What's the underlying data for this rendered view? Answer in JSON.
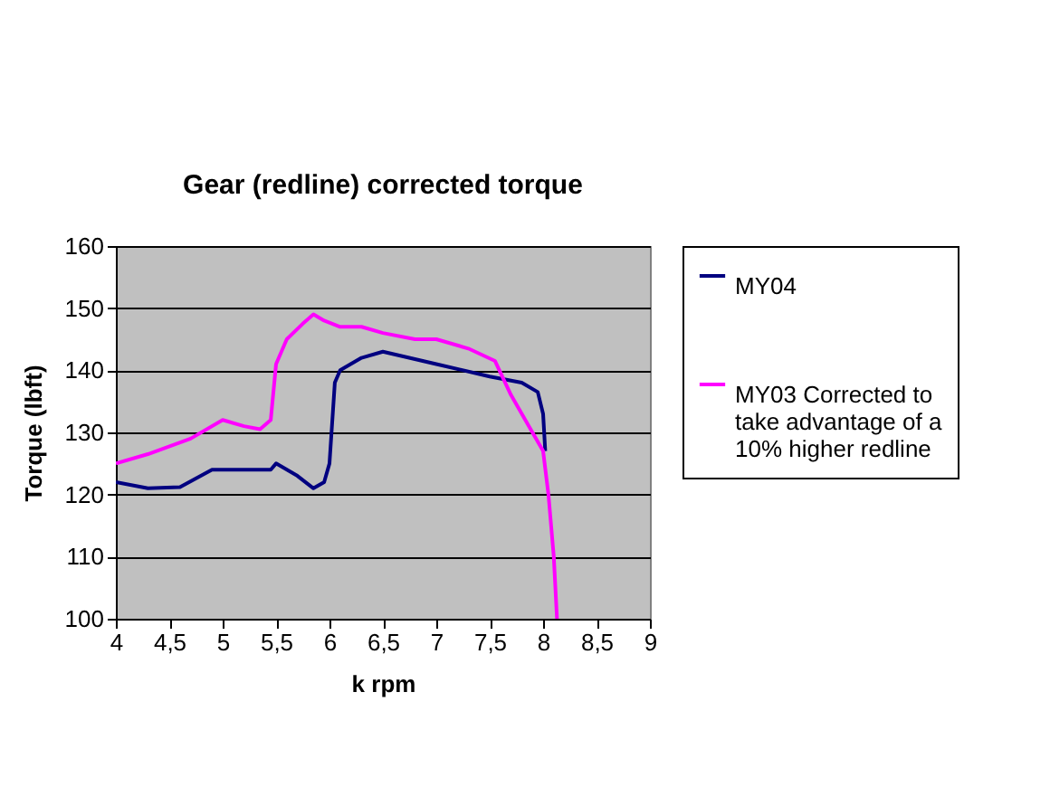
{
  "chart_data": {
    "type": "line",
    "title": "Gear (redline) corrected torque",
    "xlabel": "k rpm",
    "ylabel": "Torque (lbft)",
    "xlim": [
      4,
      9
    ],
    "xticks": [
      4,
      {
        "value": 4.5,
        "label": "4,5"
      },
      5,
      {
        "value": 5.5,
        "label": "5,5"
      },
      6,
      {
        "value": 6.5,
        "label": "6,5"
      },
      7,
      {
        "value": 7.5,
        "label": "7,5"
      },
      8,
      {
        "value": 8.5,
        "label": "8,5"
      },
      9
    ],
    "ylim": [
      100,
      160
    ],
    "yticks": [
      100,
      110,
      120,
      130,
      140,
      150,
      160
    ],
    "grid": "y",
    "legend": "right",
    "marker": "none",
    "line_style": "solid",
    "series": [
      {
        "name": "MY04",
        "color": "#000080",
        "x": [
          4,
          4.3,
          4.6,
          4.9,
          5.45,
          5.5,
          5.7,
          5.85,
          5.95,
          6.0,
          6.05,
          6.1,
          6.3,
          6.5,
          7.0,
          7.5,
          7.8,
          7.95,
          8.0,
          8.02
        ],
        "values": [
          122,
          121,
          121.2,
          124,
          124,
          125,
          123,
          121,
          122,
          125,
          138,
          140,
          142,
          143,
          141,
          139,
          138,
          136.5,
          133,
          127
        ]
      },
      {
        "name": "MY03 Corrected to take advantage of a 10% higher redline",
        "color": "#ff00ff",
        "x": [
          4,
          4.3,
          4.7,
          5.0,
          5.2,
          5.35,
          5.45,
          5.5,
          5.6,
          5.75,
          5.85,
          5.95,
          6.1,
          6.3,
          6.5,
          6.8,
          7.0,
          7.3,
          7.55,
          7.7,
          7.9,
          8.0,
          8.05,
          8.1,
          8.13
        ],
        "values": [
          125,
          126.5,
          129,
          132,
          131,
          130.5,
          132,
          141,
          145,
          147.5,
          149,
          148,
          147,
          147,
          146,
          145,
          145,
          143.5,
          141.5,
          136,
          130,
          127,
          120,
          110,
          100
        ]
      }
    ]
  }
}
